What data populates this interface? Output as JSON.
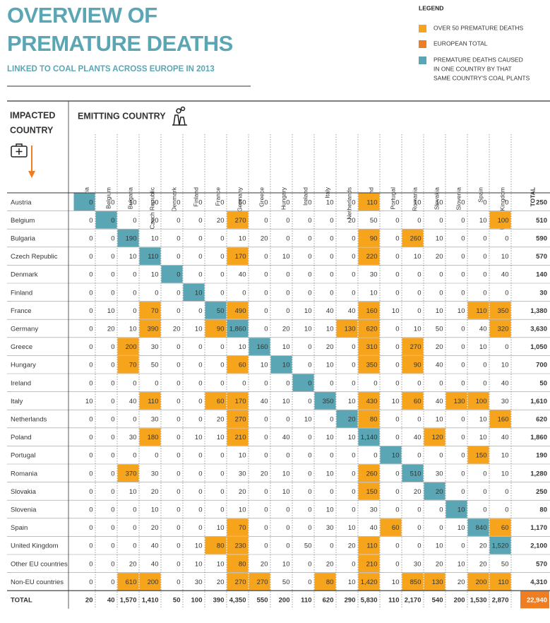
{
  "header": {
    "title": [
      "OVERVIEW OF",
      "PREMATURE DEATHS"
    ],
    "subtitle": "LINKED TO COAL PLANTS ACROSS EUROPE IN 2013"
  },
  "legend": {
    "title": "LEGEND",
    "items": [
      {
        "label": [
          "OVER 50 PREMATURE DEATHS"
        ],
        "color": "#f7a41d",
        "threshold": 50
      },
      {
        "label": [
          "EUROPEAN TOTAL"
        ],
        "color": "#ef7d22"
      },
      {
        "label": [
          "PREMATURE DEATHS CAUSED",
          "IN ONE COUNTRY BY THAT",
          "SAME COUNTRY'S COAL PLANTS"
        ],
        "color": "#5aa6b4"
      }
    ]
  },
  "table": {
    "row_header": [
      "IMPACTED",
      "COUNTRY"
    ],
    "column_header": "EMITTING COUNTRY",
    "columns": [
      "Austria",
      "Belgium",
      "Bulgaria",
      "Czech Republic",
      "Denmark",
      "Finland",
      "France",
      "Germany",
      "Greece",
      "Hungary",
      "Ireland",
      "Italy",
      "Netherlands",
      "Poland",
      "Portugal",
      "Romania",
      "Slovakia",
      "Slovenia",
      "Spain",
      "United Kingdom",
      "TOTAL"
    ],
    "rows": [
      {
        "label": "Austria",
        "cells": [
          "0",
          "0",
          "10",
          "30",
          "0",
          "0",
          "0",
          "50",
          "0",
          "0",
          "0",
          "10",
          "0",
          "110",
          "0",
          "10",
          "10",
          "0",
          "0",
          "0",
          "250"
        ]
      },
      {
        "label": "Belgium",
        "cells": [
          "0",
          "0",
          "0",
          "20",
          "0",
          "0",
          "20",
          "270",
          "0",
          "0",
          "0",
          "0",
          "20",
          "50",
          "0",
          "0",
          "0",
          "0",
          "10",
          "100",
          "510"
        ]
      },
      {
        "label": "Bulgaria",
        "cells": [
          "0",
          "0",
          "190",
          "10",
          "0",
          "0",
          "0",
          "10",
          "20",
          "0",
          "0",
          "0",
          "0",
          "90",
          "0",
          "260",
          "10",
          "0",
          "0",
          "0",
          "590"
        ]
      },
      {
        "label": "Czech Republic",
        "cells": [
          "0",
          "0",
          "10",
          "110",
          "0",
          "0",
          "0",
          "170",
          "0",
          "10",
          "0",
          "0",
          "0",
          "220",
          "0",
          "10",
          "20",
          "0",
          "0",
          "10",
          "570"
        ]
      },
      {
        "label": "Denmark",
        "cells": [
          "0",
          "0",
          "0",
          "10",
          "0",
          "0",
          "0",
          "40",
          "0",
          "0",
          "0",
          "0",
          "0",
          "30",
          "0",
          "0",
          "0",
          "0",
          "0",
          "40",
          "140"
        ]
      },
      {
        "label": "Finland",
        "cells": [
          "0",
          "0",
          "0",
          "0",
          "0",
          "10",
          "0",
          "0",
          "0",
          "0",
          "0",
          "0",
          "0",
          "10",
          "0",
          "0",
          "0",
          "0",
          "0",
          "0",
          "30"
        ]
      },
      {
        "label": "France",
        "cells": [
          "0",
          "10",
          "0",
          "70",
          "0",
          "0",
          "50",
          "490",
          "0",
          "0",
          "10",
          "40",
          "40",
          "160",
          "10",
          "0",
          "10",
          "10",
          "110",
          "350",
          "1,380"
        ]
      },
      {
        "label": "Germany",
        "cells": [
          "0",
          "20",
          "10",
          "390",
          "20",
          "10",
          "90",
          "1,860",
          "0",
          "20",
          "10",
          "10",
          "130",
          "620",
          "0",
          "10",
          "50",
          "0",
          "40",
          "320",
          "3,630"
        ]
      },
      {
        "label": "Greece",
        "cells": [
          "0",
          "0",
          "200",
          "30",
          "0",
          "0",
          "0",
          "10",
          "160",
          "10",
          "0",
          "20",
          "0",
          "310",
          "0",
          "270",
          "20",
          "0",
          "10",
          "0",
          "1,050"
        ]
      },
      {
        "label": "Hungary",
        "cells": [
          "0",
          "0",
          "70",
          "50",
          "0",
          "0",
          "0",
          "60",
          "10",
          "10",
          "0",
          "10",
          "0",
          "350",
          "0",
          "90",
          "40",
          "0",
          "0",
          "10",
          "700"
        ]
      },
      {
        "label": "Ireland",
        "cells": [
          "0",
          "0",
          "0",
          "0",
          "0",
          "0",
          "0",
          "0",
          "0",
          "0",
          "0",
          "0",
          "0",
          "0",
          "0",
          "0",
          "0",
          "0",
          "0",
          "40",
          "50"
        ]
      },
      {
        "label": "Italy",
        "cells": [
          "10",
          "0",
          "40",
          "110",
          "0",
          "0",
          "60",
          "170",
          "40",
          "10",
          "0",
          "350",
          "10",
          "430",
          "10",
          "60",
          "40",
          "130",
          "100",
          "30",
          "1,610"
        ]
      },
      {
        "label": "Netherlands",
        "cells": [
          "0",
          "0",
          "0",
          "30",
          "0",
          "0",
          "20",
          "270",
          "0",
          "0",
          "10",
          "0",
          "20",
          "80",
          "0",
          "0",
          "10",
          "0",
          "10",
          "160",
          "620"
        ]
      },
      {
        "label": "Poland",
        "cells": [
          "0",
          "0",
          "30",
          "180",
          "0",
          "10",
          "10",
          "210",
          "0",
          "40",
          "0",
          "10",
          "10",
          "1,140",
          "0",
          "40",
          "120",
          "0",
          "10",
          "40",
          "1,860"
        ]
      },
      {
        "label": "Portugal",
        "cells": [
          "0",
          "0",
          "0",
          "0",
          "0",
          "0",
          "0",
          "10",
          "0",
          "0",
          "0",
          "0",
          "0",
          "0",
          "10",
          "0",
          "0",
          "0",
          "150",
          "10",
          "190"
        ]
      },
      {
        "label": "Romania",
        "cells": [
          "0",
          "0",
          "370",
          "30",
          "0",
          "0",
          "0",
          "30",
          "20",
          "10",
          "0",
          "10",
          "0",
          "260",
          "0",
          "510",
          "30",
          "0",
          "0",
          "10",
          "1,280"
        ]
      },
      {
        "label": "Slovakia",
        "cells": [
          "0",
          "0",
          "10",
          "20",
          "0",
          "0",
          "0",
          "20",
          "0",
          "10",
          "0",
          "0",
          "0",
          "150",
          "0",
          "20",
          "20",
          "0",
          "0",
          "0",
          "250"
        ]
      },
      {
        "label": "Slovenia",
        "cells": [
          "0",
          "0",
          "0",
          "10",
          "0",
          "0",
          "0",
          "10",
          "0",
          "0",
          "0",
          "10",
          "0",
          "30",
          "0",
          "0",
          "0",
          "10",
          "0",
          "0",
          "80"
        ]
      },
      {
        "label": "Spain",
        "cells": [
          "0",
          "0",
          "0",
          "20",
          "0",
          "0",
          "10",
          "70",
          "0",
          "0",
          "0",
          "30",
          "10",
          "40",
          "60",
          "0",
          "0",
          "10",
          "840",
          "60",
          "1,170"
        ]
      },
      {
        "label": "United Kingdom",
        "cells": [
          "0",
          "0",
          "0",
          "40",
          "0",
          "10",
          "80",
          "230",
          "0",
          "0",
          "50",
          "0",
          "20",
          "110",
          "0",
          "0",
          "10",
          "0",
          "20",
          "1,520",
          "2,100"
        ]
      },
      {
        "label": "Other EU countries",
        "cells": [
          "0",
          "0",
          "20",
          "40",
          "0",
          "10",
          "10",
          "80",
          "20",
          "10",
          "0",
          "20",
          "0",
          "210",
          "0",
          "30",
          "20",
          "10",
          "20",
          "50",
          "570"
        ]
      },
      {
        "label": "Non-EU countries",
        "cells": [
          "0",
          "0",
          "610",
          "200",
          "0",
          "30",
          "20",
          "270",
          "270",
          "50",
          "0",
          "80",
          "10",
          "1,420",
          "10",
          "850",
          "130",
          "20",
          "200",
          "110",
          "4,310"
        ]
      },
      {
        "label": "TOTAL",
        "cells": [
          "20",
          "40",
          "1,570",
          "1,410",
          "50",
          "100",
          "390",
          "4,350",
          "550",
          "200",
          "110",
          "620",
          "290",
          "5,830",
          "110",
          "2,170",
          "540",
          "200",
          "1,530",
          "2,870",
          "22,940"
        ]
      }
    ]
  }
}
